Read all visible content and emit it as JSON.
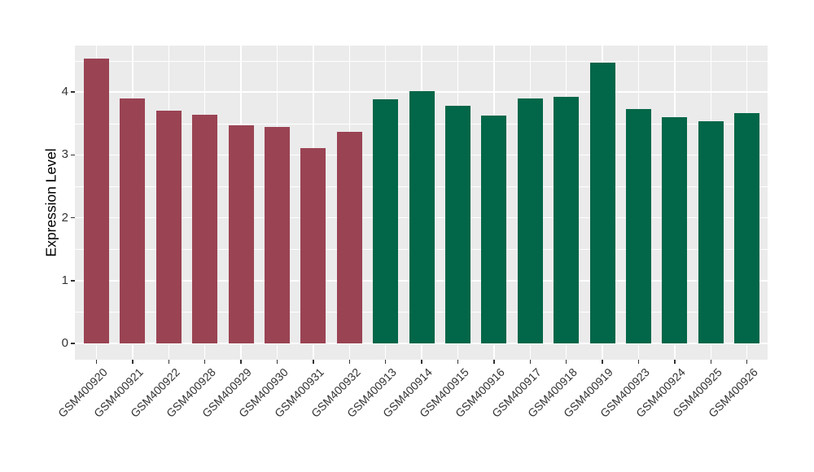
{
  "chart_data": {
    "type": "bar",
    "title": "",
    "xlabel": "",
    "ylabel": "Expression Level",
    "ylim": [
      -0.26,
      4.74
    ],
    "yticks": [
      0,
      1,
      2,
      3,
      4
    ],
    "yticks_minor": [
      0.5,
      1.5,
      2.5,
      3.5,
      4.5
    ],
    "grid": "white major and minor horizontal lines plus vertical category lines on grey panel",
    "legend_position": "none",
    "categories": [
      "GSM400920",
      "GSM400921",
      "GSM400922",
      "GSM400928",
      "GSM400929",
      "GSM400930",
      "GSM400931",
      "GSM400932",
      "GSM400913",
      "GSM400914",
      "GSM400915",
      "GSM400916",
      "GSM400917",
      "GSM400918",
      "GSM400919",
      "GSM400923",
      "GSM400924",
      "GSM400925",
      "GSM400926"
    ],
    "values": [
      4.53,
      3.9,
      3.7,
      3.64,
      3.47,
      3.44,
      3.11,
      3.37,
      3.88,
      4.02,
      3.78,
      3.63,
      3.9,
      3.93,
      4.47,
      3.73,
      3.6,
      3.54,
      3.67
    ],
    "groups": [
      "maroon",
      "maroon",
      "maroon",
      "maroon",
      "maroon",
      "maroon",
      "maroon",
      "maroon",
      "green",
      "green",
      "green",
      "green",
      "green",
      "green",
      "green",
      "green",
      "green",
      "green",
      "green"
    ],
    "group_colors": {
      "maroon": "#9A4353",
      "green": "#026648"
    },
    "panel_background": "#EBEBEB",
    "gridline_color": "#FFFFFF",
    "axis_text_color": "#333333",
    "axis_title_color": "#000000"
  }
}
